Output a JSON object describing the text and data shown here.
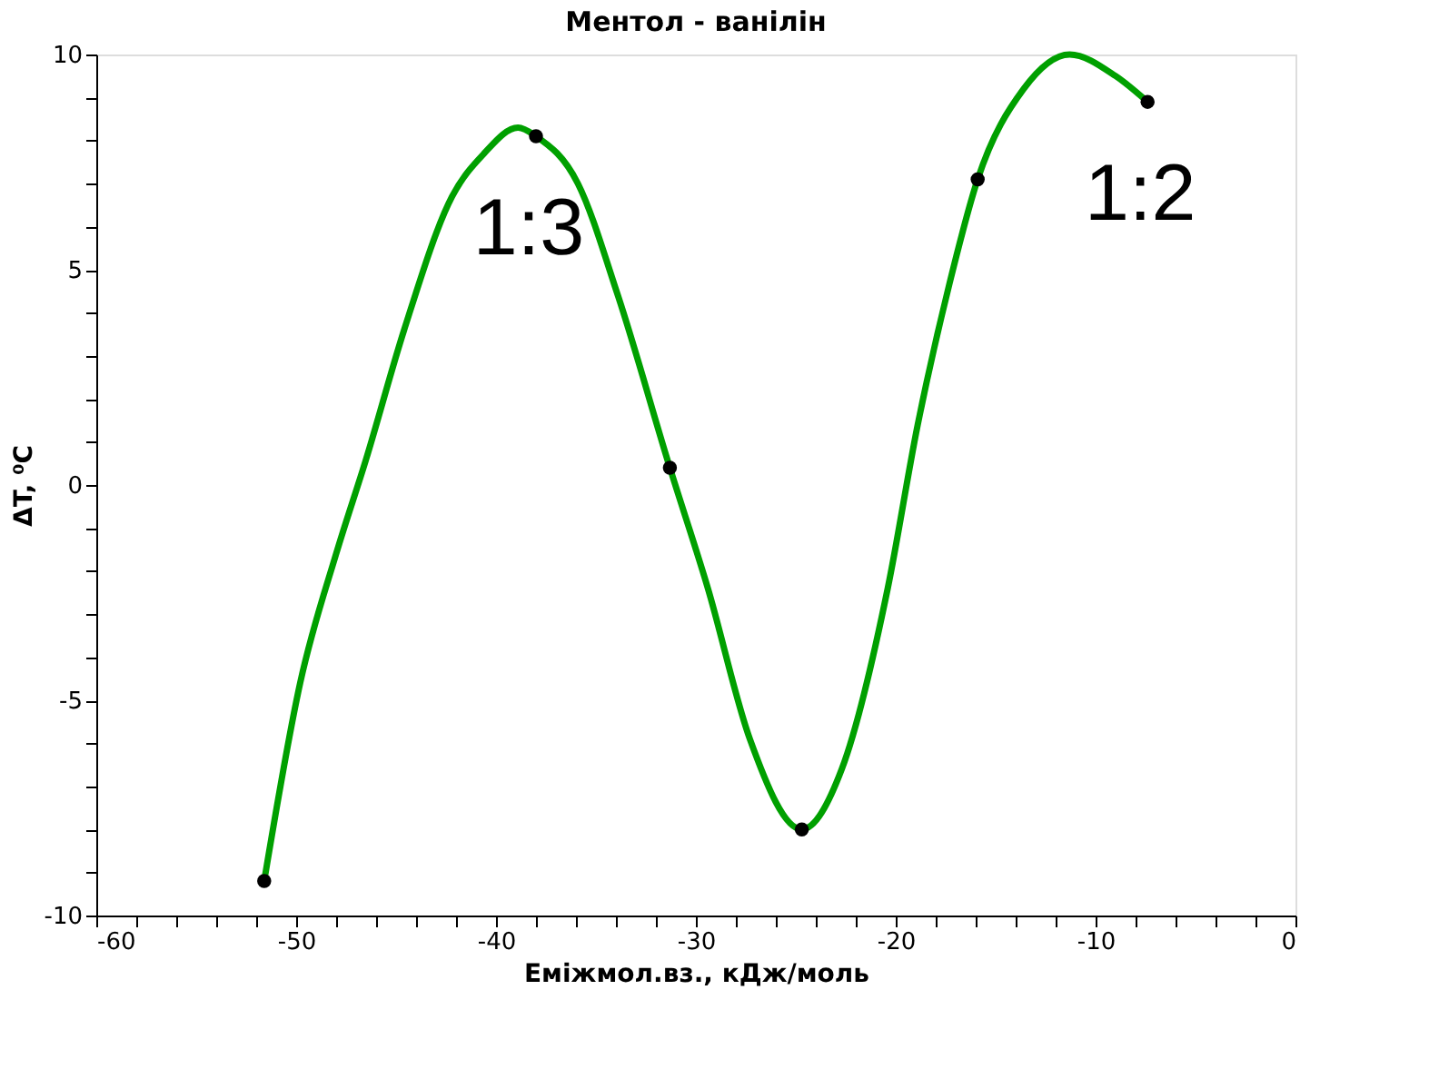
{
  "chart_data": {
    "type": "line",
    "title": "Ментол - ванілін",
    "xlabel": "Eміжмол.вз., кДж/моль",
    "ylabel": "ΔT, ⁰C",
    "xlim": [
      -60,
      0
    ],
    "ylim": [
      -10,
      10
    ],
    "xticks": [
      -60,
      {
        "value": -58,
        "label": null
      },
      {
        "value": -56,
        "label": null
      },
      {
        "value": -54,
        "label": null
      },
      {
        "value": -52,
        "label": null
      },
      -50,
      {
        "value": -48,
        "label": null
      },
      {
        "value": -46,
        "label": null
      },
      {
        "value": -44,
        "label": null
      },
      {
        "value": -42,
        "label": null
      },
      -40,
      {
        "value": -38,
        "label": null
      },
      {
        "value": -36,
        "label": null
      },
      {
        "value": -34,
        "label": null
      },
      {
        "value": -32,
        "label": null
      },
      -30,
      {
        "value": -28,
        "label": null
      },
      {
        "value": -26,
        "label": null
      },
      {
        "value": -24,
        "label": null
      },
      {
        "value": -22,
        "label": null
      },
      -20,
      {
        "value": -18,
        "label": null
      },
      {
        "value": -16,
        "label": null
      },
      {
        "value": -14,
        "label": null
      },
      {
        "value": -12,
        "label": null
      },
      -10,
      {
        "value": -8,
        "label": null
      },
      {
        "value": -6,
        "label": null
      },
      {
        "value": -4,
        "label": null
      },
      {
        "value": -2,
        "label": null
      },
      0
    ],
    "yticks": [
      -10,
      {
        "value": -9,
        "label": null
      },
      {
        "value": -8,
        "label": null
      },
      {
        "value": -7,
        "label": null
      },
      {
        "value": -6,
        "label": null
      },
      -5,
      {
        "value": -4,
        "label": null
      },
      {
        "value": -3,
        "label": null
      },
      {
        "value": -2,
        "label": null
      },
      {
        "value": -1,
        "label": null
      },
      0,
      {
        "value": 1,
        "label": null
      },
      {
        "value": 2,
        "label": null
      },
      {
        "value": 3,
        "label": null
      },
      {
        "value": 4,
        "label": null
      },
      5,
      {
        "value": 6,
        "label": null
      },
      {
        "value": 7,
        "label": null
      },
      {
        "value": 8,
        "label": null
      },
      {
        "value": 9,
        "label": null
      },
      10
    ],
    "grid": false,
    "series": [
      {
        "color": "#00a000",
        "marker": "none",
        "line_style": "solid",
        "x": [
          -51.6,
          -49.8,
          -48.0,
          -46.5,
          -44.6,
          -42.2,
          -40.6,
          -38.9,
          -38.0,
          -35.9,
          -33.9,
          -31.3,
          -29.4,
          -27.3,
          -24.7,
          -22.7,
          -20.4,
          -18.9,
          -17.3,
          -15.9,
          -13.6,
          -11.3,
          -9.0,
          -7.4
        ],
        "values": [
          -9.2,
          -4.6,
          -1.6,
          0.6,
          3.6,
          6.7,
          7.7,
          8.3,
          8.1,
          7.0,
          4.4,
          0.4,
          -2.4,
          -5.9,
          -8.0,
          -6.6,
          -2.4,
          1.4,
          4.7,
          7.1,
          9.2,
          10.0,
          9.5,
          8.9
        ]
      },
      {
        "type": "scatter",
        "color": "#000000",
        "marker": "circle",
        "x": [
          -51.6,
          -38.0,
          -31.3,
          -24.7,
          -15.9,
          -7.4
        ],
        "values": [
          -9.2,
          8.1,
          0.4,
          -8.0,
          7.1,
          8.9
        ]
      }
    ],
    "annotations": [
      {
        "text": "1:3",
        "x": -38.0,
        "y": 8.1
      },
      {
        "text": "1:2",
        "x": -7.4,
        "y": 8.9
      }
    ]
  }
}
